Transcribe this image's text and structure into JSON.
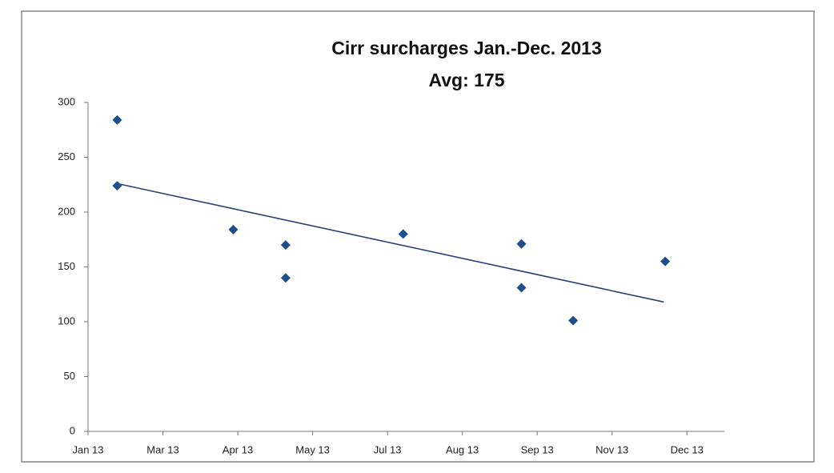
{
  "chart_data": {
    "type": "scatter",
    "title": "Cirr surcharges Jan.-Dec. 2013",
    "subtitle": "Avg: 175",
    "x": [
      0.39,
      0.39,
      1.94,
      2.64,
      2.64,
      4.21,
      5.79,
      5.79,
      6.48,
      7.71
    ],
    "values": [
      284,
      224,
      184,
      170,
      140,
      180,
      171,
      131,
      101,
      155
    ],
    "color": "#1f4e8c",
    "trendline": {
      "x": [
        0.39,
        7.69
      ],
      "values": [
        226,
        118
      ],
      "color": "#2b3f7a"
    },
    "xlim": [
      0,
      8.5
    ],
    "xticks": [
      {
        "value": 0,
        "label": "Jan 13"
      },
      {
        "value": 1,
        "label": "Mar 13"
      },
      {
        "value": 2,
        "label": "Apr 13"
      },
      {
        "value": 3,
        "label": "May 13"
      },
      {
        "value": 4,
        "label": "Jul 13"
      },
      {
        "value": 5,
        "label": "Aug 13"
      },
      {
        "value": 6,
        "label": "Sep 13"
      },
      {
        "value": 7,
        "label": "Nov 13"
      },
      {
        "value": 8,
        "label": "Dec 13"
      }
    ],
    "ylim": [
      0,
      300
    ],
    "yticks": [
      0,
      50,
      100,
      150,
      200,
      250,
      300
    ]
  }
}
